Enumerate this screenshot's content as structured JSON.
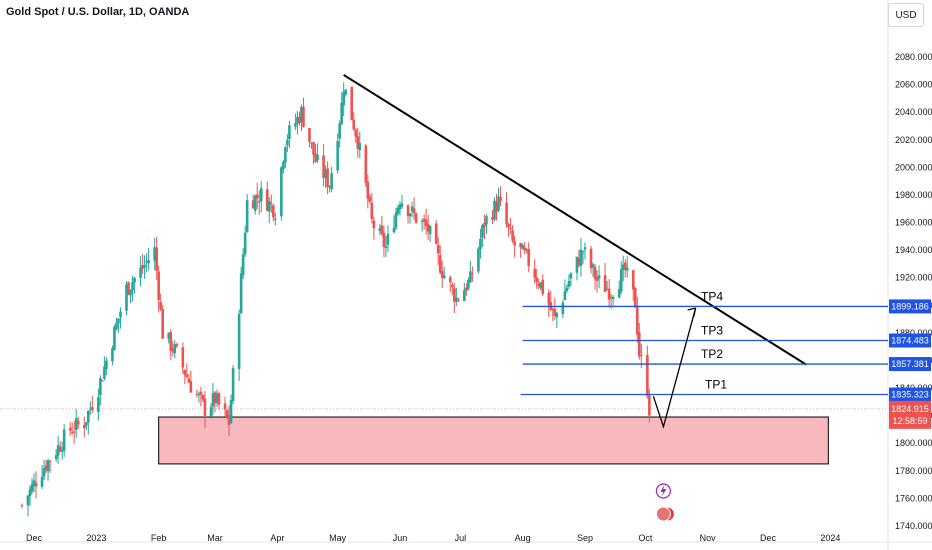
{
  "header": {
    "title": "Gold Spot / U.S. Dollar, 1D, OANDA",
    "currency": "USD"
  },
  "colors": {
    "up": "#26a69a",
    "down": "#ef5350",
    "level_line": "#1e53e5",
    "zone_fill": "#f8b8bd",
    "trendline": "#000000"
  },
  "chart_data": {
    "type": "candlestick",
    "title": "Gold Spot / U.S. Dollar, 1D, OANDA",
    "ylim": [
      1735,
      2090
    ],
    "y_ticks": [
      1740,
      1760,
      1780,
      1800,
      1820,
      1840,
      1860,
      1880,
      1900,
      1920,
      1940,
      1960,
      1980,
      2000,
      2020,
      2040,
      2060,
      2080
    ],
    "x_ticks": [
      {
        "label": "Dec",
        "date": "2022-12-01"
      },
      {
        "label": "2023",
        "date": "2023-01-01"
      },
      {
        "label": "Feb",
        "date": "2023-02-01"
      },
      {
        "label": "Mar",
        "date": "2023-03-01"
      },
      {
        "label": "Apr",
        "date": "2023-04-01"
      },
      {
        "label": "May",
        "date": "2023-05-01"
      },
      {
        "label": "Jun",
        "date": "2023-06-01"
      },
      {
        "label": "Jul",
        "date": "2023-07-01"
      },
      {
        "label": "Aug",
        "date": "2023-08-01"
      },
      {
        "label": "Sep",
        "date": "2023-09-01"
      },
      {
        "label": "Oct",
        "date": "2023-10-01"
      },
      {
        "label": "Nov",
        "date": "2023-11-01"
      },
      {
        "label": "Dec",
        "date": "2023-12-01"
      },
      {
        "label": "2024",
        "date": "2024-01-01"
      }
    ],
    "close_path": [
      [
        "2022-11-25",
        1755
      ],
      [
        "2022-11-30",
        1768
      ],
      [
        "2022-12-05",
        1781
      ],
      [
        "2022-12-12",
        1795
      ],
      [
        "2022-12-19",
        1810
      ],
      [
        "2022-12-26",
        1815
      ],
      [
        "2023-01-02",
        1840
      ],
      [
        "2023-01-09",
        1875
      ],
      [
        "2023-01-16",
        1912
      ],
      [
        "2023-01-23",
        1925
      ],
      [
        "2023-01-30",
        1940
      ],
      [
        "2023-02-03",
        1880
      ],
      [
        "2023-02-10",
        1865
      ],
      [
        "2023-02-17",
        1842
      ],
      [
        "2023-02-24",
        1825
      ],
      [
        "2023-03-01",
        1832
      ],
      [
        "2023-03-08",
        1815
      ],
      [
        "2023-03-13",
        1900
      ],
      [
        "2023-03-17",
        1975
      ],
      [
        "2023-03-24",
        1980
      ],
      [
        "2023-03-31",
        1969
      ],
      [
        "2023-04-05",
        2020
      ],
      [
        "2023-04-13",
        2040
      ],
      [
        "2023-04-20",
        2005
      ],
      [
        "2023-04-27",
        1988
      ],
      [
        "2023-05-03",
        2045
      ],
      [
        "2023-05-04",
        2060
      ],
      [
        "2023-05-11",
        2020
      ],
      [
        "2023-05-18",
        1960
      ],
      [
        "2023-05-25",
        1942
      ],
      [
        "2023-06-01",
        1978
      ],
      [
        "2023-06-08",
        1965
      ],
      [
        "2023-06-15",
        1955
      ],
      [
        "2023-06-22",
        1925
      ],
      [
        "2023-06-29",
        1905
      ],
      [
        "2023-07-06",
        1918
      ],
      [
        "2023-07-13",
        1960
      ],
      [
        "2023-07-20",
        1975
      ],
      [
        "2023-07-27",
        1945
      ],
      [
        "2023-08-03",
        1934
      ],
      [
        "2023-08-10",
        1915
      ],
      [
        "2023-08-17",
        1890
      ],
      [
        "2023-08-24",
        1918
      ],
      [
        "2023-08-31",
        1940
      ],
      [
        "2023-09-07",
        1918
      ],
      [
        "2023-09-14",
        1910
      ],
      [
        "2023-09-21",
        1925
      ],
      [
        "2023-09-26",
        1902
      ],
      [
        "2023-09-28",
        1865
      ],
      [
        "2023-10-02",
        1840
      ],
      [
        "2023-10-03",
        1825
      ]
    ],
    "levels": [
      {
        "label": "TP4",
        "price": 1899.186,
        "tag": "1899.186"
      },
      {
        "label": "TP3",
        "price": 1874.483,
        "tag": "1874.483"
      },
      {
        "label": "TP2",
        "price": 1857.381,
        "tag": "1857.381"
      },
      {
        "label": "TP1",
        "price": 1835.323,
        "tag": "1835.323"
      }
    ],
    "current_price": {
      "value": "1824.915",
      "countdown": "12:58:59"
    },
    "demand_zone": {
      "start": "2023-02-01",
      "end": "2023-12-31",
      "top": 1819,
      "bottom": 1785
    },
    "trendline": {
      "start": [
        "2023-05-04",
        2067
      ],
      "end": [
        "2023-12-20",
        1857
      ]
    },
    "projection": [
      [
        "2023-10-05",
        1834
      ],
      [
        "2023-10-10",
        1812
      ],
      [
        "2023-10-26",
        1898
      ]
    ],
    "events": [
      "lightning-event",
      "us-flag-event"
    ]
  }
}
